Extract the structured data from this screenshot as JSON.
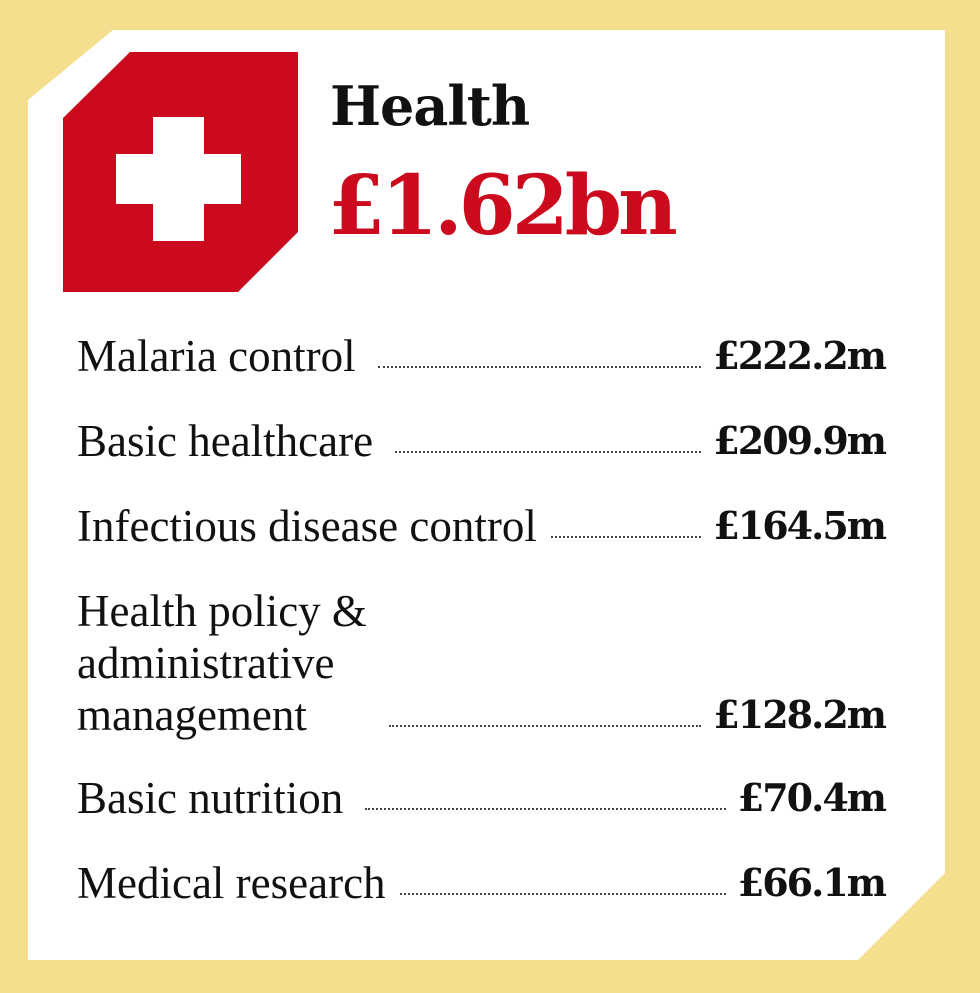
{
  "header": {
    "title": "Health",
    "total": "£1.62bn",
    "icon": "medical-cross-icon"
  },
  "colors": {
    "background": "#f5de8e",
    "accent_red": "#cc0a1e",
    "panel": "#ffffff"
  },
  "items": [
    {
      "label": "Malaria control",
      "value": "£222.2m"
    },
    {
      "label": "Basic healthcare",
      "value": "£209.9m"
    },
    {
      "label": "Infectious disease control",
      "value": "£164.5m"
    },
    {
      "label": "Health policy &\nadministrative\nmanagement",
      "value": "£128.2m"
    },
    {
      "label": "Basic nutrition",
      "value": "£70.4m"
    },
    {
      "label": "Medical research",
      "value": "£66.1m"
    }
  ]
}
